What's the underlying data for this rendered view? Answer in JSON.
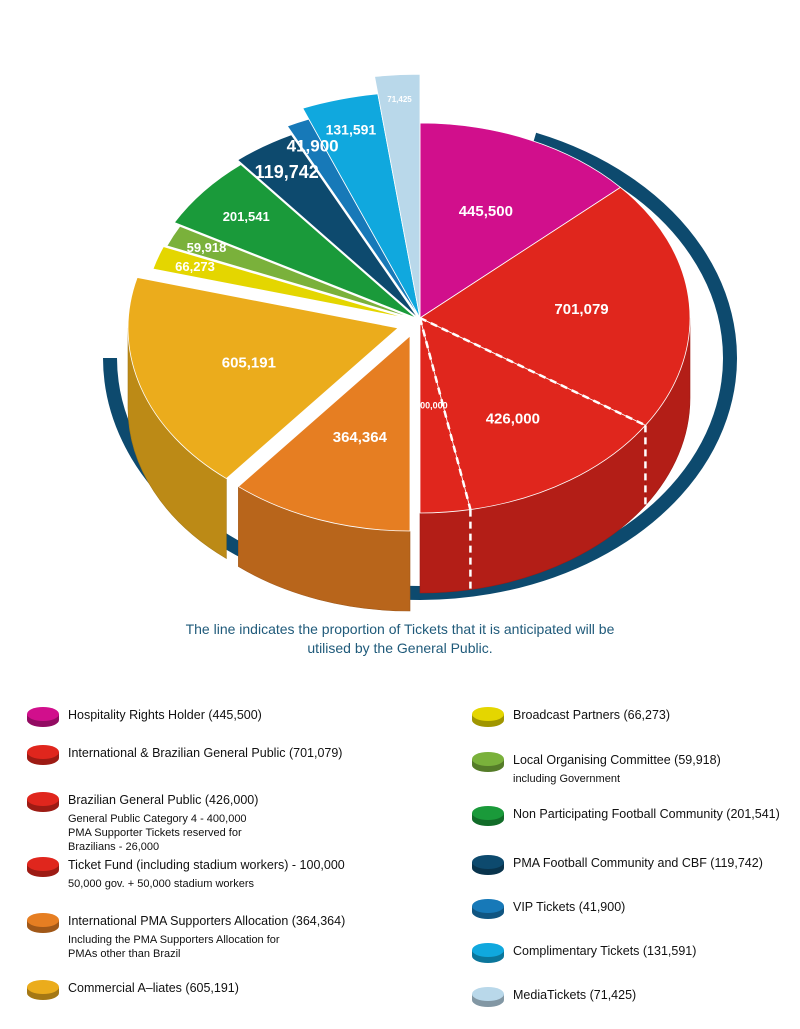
{
  "chart_data": {
    "type": "pie",
    "slices": [
      {
        "label": "Hospitality Rights Holder",
        "value": 445500,
        "value_label": "445,500",
        "color": "#d10f8c"
      },
      {
        "label": "International & Brazilian General Public",
        "value": 701079,
        "value_label": "701,079",
        "color": "#e0261d"
      },
      {
        "label": "Brazilian General Public",
        "value": 426000,
        "value_label": "426,000",
        "color": "#e0261d"
      },
      {
        "label": "Ticket Fund (including stadium workers)",
        "value": 100000,
        "value_label": "100,000",
        "color": "#e0261d"
      },
      {
        "label": "International PMA Supporters Allocation",
        "value": 364364,
        "value_label": "364,364",
        "color": "#e67e22"
      },
      {
        "label": "Commercial A–liates",
        "value": 605191,
        "value_label": "605,191",
        "color": "#ebac1c"
      },
      {
        "label": "Broadcast Partners",
        "value": 66273,
        "value_label": "66,273",
        "color": "#e4d600"
      },
      {
        "label": "Local Organising Committee",
        "value": 59918,
        "value_label": "59,918",
        "color": "#7ab13b"
      },
      {
        "label": "Non Participating Football Community",
        "value": 201541,
        "value_label": "201,541",
        "color": "#1a9a3a"
      },
      {
        "label": "PMA Football Community and CBF",
        "value": 119742,
        "value_label": "119,742",
        "color": "#0d4a6e"
      },
      {
        "label": "VIP Tickets",
        "value": 41900,
        "value_label": "41,900",
        "color": "#1779b8"
      },
      {
        "label": "Complimentary Tickets",
        "value": 131591,
        "value_label": "131,591",
        "color": "#10a8de"
      },
      {
        "label": "MediaTickets",
        "value": 71425,
        "value_label": "71,425",
        "color": "#b9d8ea"
      }
    ],
    "annotation": "The line indicates the proportion of Tickets that it is anticipated will be utilised by the General Public.",
    "arc_color": "#0d4a6e"
  },
  "legend_left": [
    {
      "text": "Hospitality Rights Holder (445,500)",
      "sub": "",
      "color": "#d10f8c"
    },
    {
      "text": "International & Brazilian General Public (701,079)",
      "sub": "",
      "color": "#e0261d"
    },
    {
      "text": "Brazilian General Public (426,000)",
      "sub": "General Public Category 4 - 400,000\nPMA Supporter Tickets reserved for Brazilians - 26,000",
      "color": "#e0261d"
    },
    {
      "text": "Ticket Fund (including stadium workers) - 100,000",
      "sub": "50,000 gov. + 50,000 stadium workers",
      "color": "#e0261d"
    },
    {
      "text": "International PMA Supporters Allocation (364,364)",
      "sub": "Including the PMA Supporters Allocation for\nPMAs other than Brazil",
      "color": "#e67e22"
    },
    {
      "text": "Commercial A–liates (605,191)",
      "sub": "",
      "color": "#ebac1c"
    }
  ],
  "legend_right": [
    {
      "text": "Broadcast Partners (66,273)",
      "sub": "",
      "color": "#e4d600"
    },
    {
      "text": "Local Organising Committee (59,918)",
      "sub": "including Government",
      "color": "#7ab13b"
    },
    {
      "text": "Non Participating Football Community (201,541)",
      "sub": "",
      "color": "#1a9a3a"
    },
    {
      "text": "PMA Football Community and CBF (119,742)",
      "sub": "",
      "color": "#0d4a6e"
    },
    {
      "text": "VIP Tickets (41,900)",
      "sub": "",
      "color": "#1779b8"
    },
    {
      "text": "Complimentary Tickets (131,591)",
      "sub": "",
      "color": "#10a8de"
    },
    {
      "text": "MediaTickets (71,425)",
      "sub": "",
      "color": "#b9d8ea"
    }
  ]
}
